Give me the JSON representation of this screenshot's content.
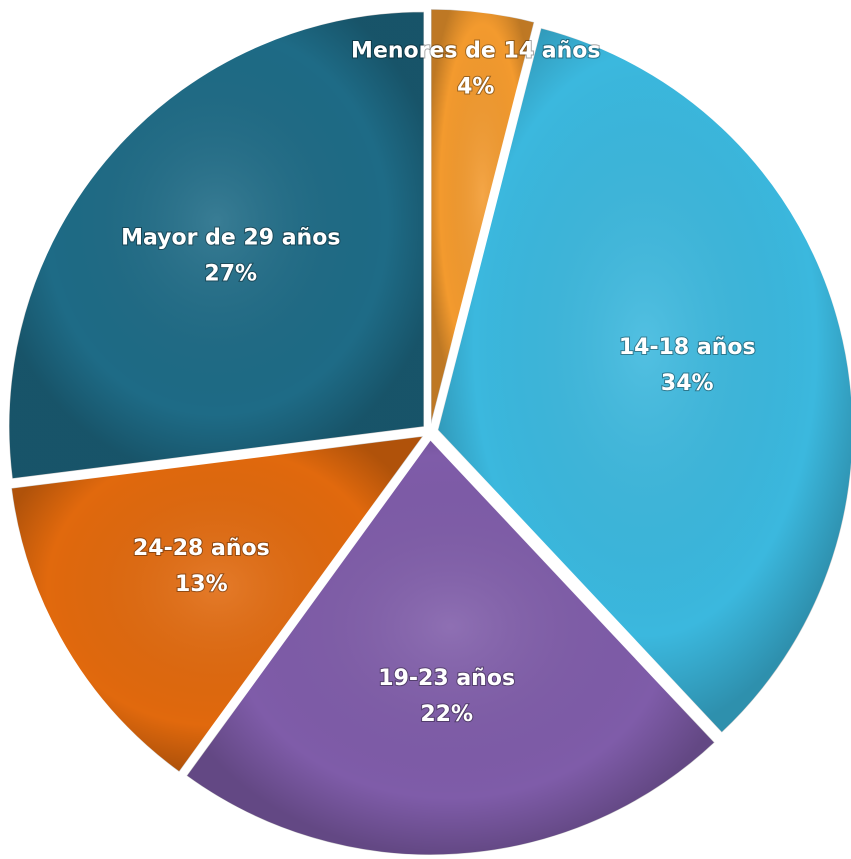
{
  "chart_data": {
    "type": "pie",
    "categories": [
      "Menores de 14 años",
      "14-18 años",
      "19-23 años",
      "24-28 años",
      "Mayor de 29 años"
    ],
    "values": [
      4,
      34,
      22,
      13,
      27
    ],
    "value_labels": [
      "4%",
      "34%",
      "22%",
      "13%",
      "27%"
    ],
    "colors": [
      "#f39a2e",
      "#3bb8de",
      "#7f5ca9",
      "#e1690d",
      "#1e6b86"
    ]
  }
}
